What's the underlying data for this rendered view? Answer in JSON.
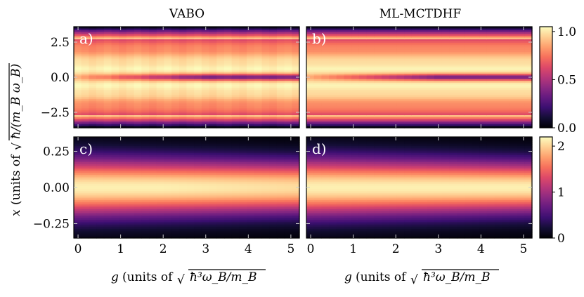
{
  "chart_data": {
    "type": "heatmap",
    "colormap": "magma",
    "column_titles": [
      "VABO",
      "ML-MCTDHF"
    ],
    "xlabel": "g (units of √ħ³ω_B/m_B)",
    "xlabel_text": "(units of",
    "xlabel_var": "g",
    "xlabel_unit": "ħ³ω_B/m_B",
    "ylabel": "x (units of √ħ/(m_B ω_B))",
    "ylabel_text": "(units of",
    "ylabel_var": "x",
    "ylabel_unit": "ħ/(m_B ω_B)",
    "x_ticks": [
      0,
      1,
      2,
      3,
      4,
      5
    ],
    "xlim": [
      -0.1,
      5.2
    ],
    "panels": [
      {
        "label": "a)",
        "title": "VABO",
        "ylim": [
          -3.6,
          3.6
        ],
        "yticks": [
          2.5,
          0.0,
          -2.5
        ],
        "ytick_labels": [
          "2.5",
          "0.0",
          "−2.5"
        ],
        "method": "VABO",
        "row": "top"
      },
      {
        "label": "b)",
        "title": "ML-MCTDHF",
        "ylim": [
          -3.6,
          3.6
        ],
        "yticks": [
          2.5,
          0.0,
          -2.5
        ],
        "ytick_labels": [
          "2.5",
          "0.0",
          "−2.5"
        ],
        "method": "ML-MCTDHF",
        "row": "top"
      },
      {
        "label": "c)",
        "title": "VABO",
        "ylim": [
          -0.35,
          0.35
        ],
        "yticks": [
          0.25,
          0.0,
          -0.25
        ],
        "ytick_labels": [
          "0.25",
          "0.00",
          "−0.25"
        ],
        "method": "VABO",
        "row": "bottom"
      },
      {
        "label": "d)",
        "title": "ML-MCTDHF",
        "ylim": [
          -0.35,
          0.35
        ],
        "yticks": [
          0.25,
          0.0,
          -0.25
        ],
        "ytick_labels": [
          "0.25",
          "0.00",
          "−0.25"
        ],
        "method": "ML-MCTDHF",
        "row": "bottom"
      }
    ],
    "colorbars": [
      {
        "row": "top",
        "range": [
          0.0,
          1.05
        ],
        "ticks": [
          1.0,
          0.5,
          0.0
        ],
        "tick_labels": [
          "1.0",
          "0.5",
          "0.0"
        ]
      },
      {
        "row": "bottom",
        "range": [
          0,
          2.2
        ],
        "ticks": [
          2,
          1,
          0
        ],
        "tick_labels": [
          "2",
          "1",
          "0"
        ]
      }
    ]
  }
}
